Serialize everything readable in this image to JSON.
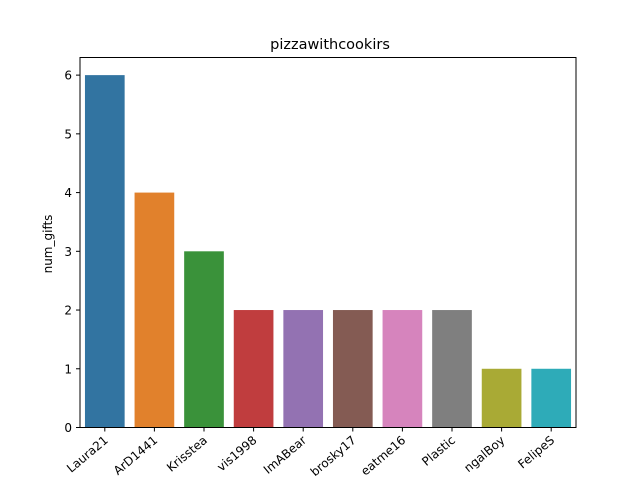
{
  "chart_data": {
    "type": "bar",
    "title": "pizzawithcookirs",
    "xlabel": "",
    "ylabel": "num_gifts",
    "categories": [
      "Laura21",
      "ArD1441",
      "Krisstea",
      "vis1998",
      "ImABear",
      "brosky17",
      "eatme16",
      "Plastic",
      "ngalBoy",
      "FelipeS"
    ],
    "values": [
      6,
      4,
      3,
      2,
      2,
      2,
      2,
      2,
      1,
      1
    ],
    "yticks": [
      "0",
      "1",
      "2",
      "3",
      "4",
      "5",
      "6"
    ],
    "ylim": [
      0,
      6.3
    ],
    "grid": false,
    "legend": "none",
    "colors": [
      "#3274a1",
      "#e1812c",
      "#3a923a",
      "#c03d3e",
      "#9372b2",
      "#845b53",
      "#d684bd",
      "#7f7f7f",
      "#a9aa35",
      "#2eabb8"
    ]
  }
}
